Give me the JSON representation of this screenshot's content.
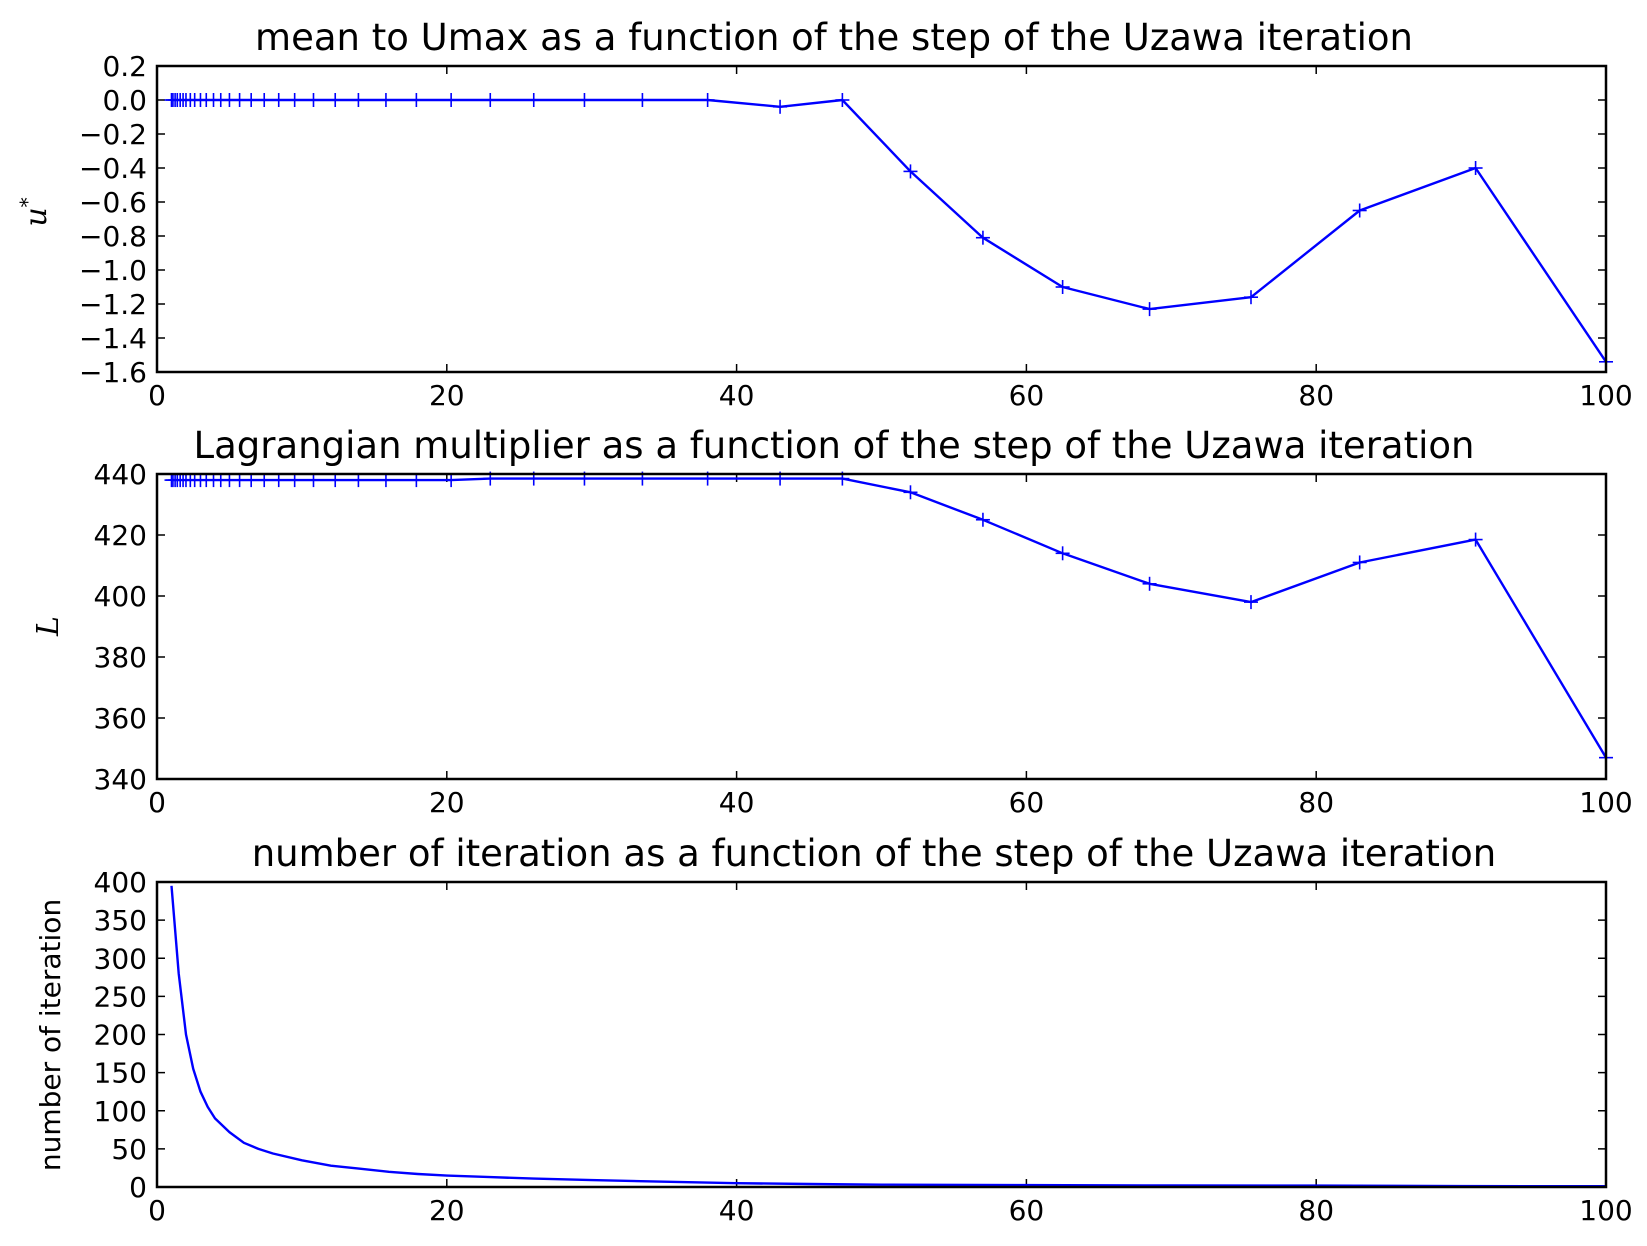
{
  "chart_data": [
    {
      "type": "line",
      "title": "mean to Umax as a function of the step of the Uzawa iteration",
      "xlabel": "",
      "ylabel": "u",
      "ylabel_superscript": "*",
      "xlim": [
        0,
        100
      ],
      "ylim": [
        -1.6,
        0.2
      ],
      "xticks": [
        "0",
        "20",
        "40",
        "60",
        "80",
        "100"
      ],
      "yticks": [
        "0.2",
        "0.0",
        "−0.2",
        "−0.4",
        "−0.6",
        "−0.8",
        "−1.0",
        "−1.2",
        "−1.4",
        "−1.6"
      ],
      "grid": false,
      "marker": "+",
      "series": [
        {
          "color": "#0000ff",
          "x": [
            1,
            1.1,
            1.25,
            1.4,
            1.6,
            1.8,
            2,
            2.3,
            2.6,
            3,
            3.4,
            3.9,
            4.4,
            5,
            5.7,
            6.5,
            7.4,
            8.4,
            9.5,
            10.8,
            12.3,
            13.9,
            15.8,
            17.9,
            20.3,
            23,
            26,
            29.5,
            33.5,
            38,
            43,
            47.3,
            52,
            57,
            62.5,
            68.5,
            75.5,
            83,
            91,
            100
          ],
          "y": [
            0,
            0,
            0,
            0,
            0,
            0,
            0,
            0,
            0,
            0,
            0,
            0,
            0,
            0,
            0,
            0,
            0,
            0,
            0,
            0,
            0,
            0,
            0,
            0,
            0,
            0,
            0,
            0,
            0,
            0,
            -0.04,
            0,
            -0.42,
            -0.81,
            -1.1,
            -1.23,
            -1.16,
            -0.65,
            -0.4,
            -1.54
          ]
        }
      ]
    },
    {
      "type": "line",
      "title": "Lagrangian multiplier as a function of the step of the Uzawa iteration",
      "xlabel": "",
      "ylabel": "L",
      "xlim": [
        0,
        100
      ],
      "ylim": [
        340,
        440
      ],
      "xticks": [
        "0",
        "20",
        "40",
        "60",
        "80",
        "100"
      ],
      "yticks": [
        "440",
        "420",
        "400",
        "380",
        "360",
        "340"
      ],
      "grid": false,
      "marker": "+",
      "series": [
        {
          "color": "#0000ff",
          "x": [
            1,
            1.1,
            1.25,
            1.4,
            1.6,
            1.8,
            2,
            2.3,
            2.6,
            3,
            3.4,
            3.9,
            4.4,
            5,
            5.7,
            6.5,
            7.4,
            8.4,
            9.5,
            10.8,
            12.3,
            13.9,
            15.8,
            17.9,
            20.3,
            23,
            26,
            29.5,
            33.5,
            38,
            43,
            47.3,
            52,
            57,
            62.5,
            68.5,
            75.5,
            83,
            91,
            100
          ],
          "y": [
            438,
            438,
            438,
            438,
            438,
            438,
            438,
            438,
            438,
            438,
            438,
            438,
            438,
            438,
            438,
            438,
            438,
            438,
            438,
            438,
            438,
            438,
            438,
            438,
            438,
            438.5,
            438.5,
            438.5,
            438.5,
            438.5,
            438.5,
            438.5,
            434,
            425,
            414,
            404,
            398,
            411,
            418.5,
            347
          ]
        }
      ]
    },
    {
      "type": "line",
      "title": "number of iteration as a function of the step of the Uzawa iteration",
      "xlabel": "",
      "ylabel": "number of iteration",
      "xlim": [
        0,
        100
      ],
      "ylim": [
        0,
        400
      ],
      "xticks": [
        "0",
        "20",
        "40",
        "60",
        "80",
        "100"
      ],
      "yticks": [
        "400",
        "350",
        "300",
        "250",
        "200",
        "150",
        "100",
        "50",
        "0"
      ],
      "grid": false,
      "marker": "none",
      "series": [
        {
          "color": "#0000ff",
          "x": [
            1,
            1.5,
            2,
            2.5,
            3,
            3.5,
            4,
            5,
            6,
            7,
            8,
            10,
            12,
            14,
            16,
            18,
            20,
            23,
            26,
            30,
            35,
            40,
            45,
            50,
            60,
            70,
            80,
            90,
            100
          ],
          "y": [
            395,
            280,
            200,
            155,
            125,
            105,
            90,
            72,
            58,
            50,
            44,
            35,
            28,
            24,
            20,
            17,
            15,
            13,
            11,
            9,
            7,
            5,
            4,
            3,
            2.5,
            2,
            1.8,
            1.2,
            1
          ]
        }
      ]
    }
  ]
}
